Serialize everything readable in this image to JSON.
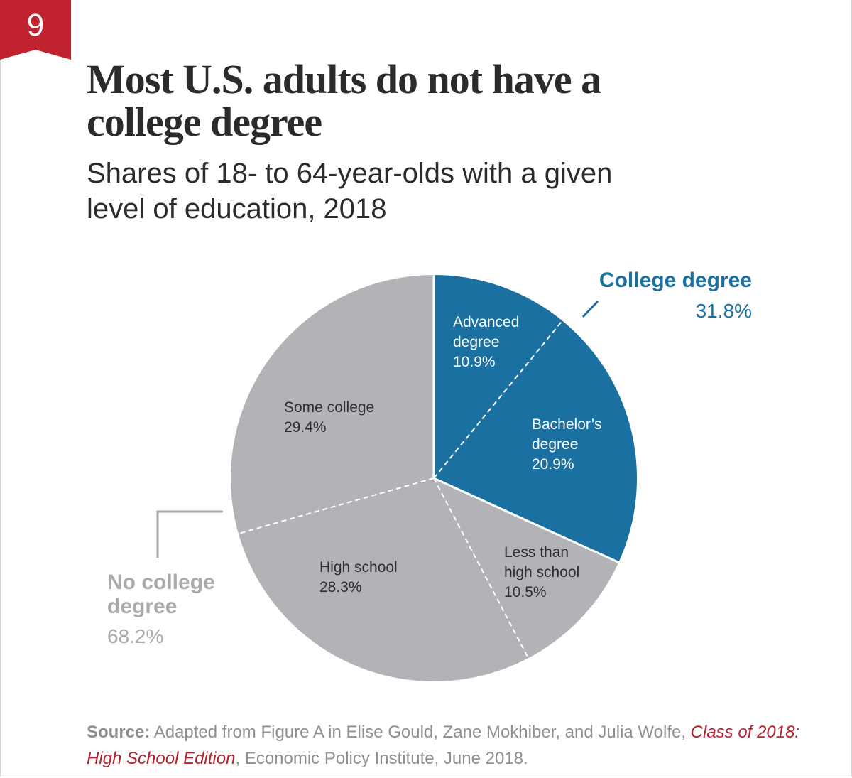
{
  "badge": {
    "number": "9",
    "color": "#c0222f"
  },
  "header": {
    "title_line1": "Most U.S. adults do not have a",
    "title_line2": "college degree",
    "subtitle_line1": "Shares of 18- to 64-year-olds with a given",
    "subtitle_line2": "level of education, 2018"
  },
  "chart_data": {
    "type": "pie",
    "title": "Most U.S. adults do not have a college degree",
    "subtitle": "Shares of 18- to 64-year-olds with a given level of education, 2018",
    "unit": "%",
    "start_angle_deg": 0,
    "direction": "clockwise",
    "slices": [
      {
        "label_lines": [
          "Advanced",
          "degree"
        ],
        "value": 10.9,
        "value_label": "10.9%",
        "group": "college",
        "color": "#1a71a1"
      },
      {
        "label_lines": [
          "Bachelor’s",
          "degree"
        ],
        "value": 20.9,
        "value_label": "20.9%",
        "group": "college",
        "color": "#1a71a1"
      },
      {
        "label_lines": [
          "Less than",
          "high school"
        ],
        "value": 10.5,
        "value_label": "10.5%",
        "group": "no_college",
        "color": "#b2b3b6"
      },
      {
        "label_lines": [
          "High school"
        ],
        "value": 28.3,
        "value_label": "28.3%",
        "group": "no_college",
        "color": "#b2b3b6"
      },
      {
        "label_lines": [
          "Some college"
        ],
        "value": 29.4,
        "value_label": "29.4%",
        "group": "no_college",
        "color": "#b2b3b6"
      }
    ],
    "groups": [
      {
        "id": "college",
        "label": "College degree",
        "value": 31.8,
        "value_label": "31.8%",
        "color": "#1a71a1"
      },
      {
        "id": "no_college",
        "label_lines": [
          "No college",
          "degree"
        ],
        "value": 68.2,
        "value_label": "68.2%",
        "color": "#a9aaad"
      }
    ]
  },
  "source": {
    "lead": "Source:",
    "text_before": " Adapted from Figure A in Elise Gould, Zane Mokhiber, and Julia Wolfe, ",
    "publication": "Class of 2018: High School Edition",
    "text_after": ", Economic Policy Institute, June 2018."
  }
}
